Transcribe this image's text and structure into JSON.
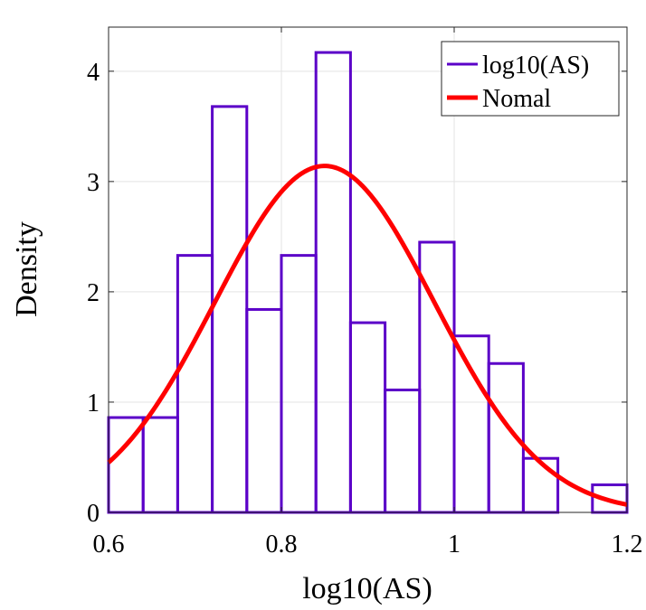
{
  "chart_data": {
    "type": "bar",
    "xlabel": "log10(AS)",
    "ylabel": "Density",
    "xlim": [
      0.6,
      1.2
    ],
    "ylim": [
      0,
      4.4
    ],
    "xticks": [
      "0.6",
      "0.8",
      "1",
      "1.2"
    ],
    "xtick_values": [
      0.6,
      0.8,
      1.0,
      1.2
    ],
    "yticks": [
      "0",
      "1",
      "2",
      "3",
      "4"
    ],
    "ytick_values": [
      0,
      1,
      2,
      3,
      4
    ],
    "grid": true,
    "legend_position": "top-right",
    "series": [
      {
        "name": "log10(AS)",
        "kind": "histogram",
        "color": "#5b00c8",
        "bin_edges": [
          0.6,
          0.64,
          0.68,
          0.72,
          0.76,
          0.8,
          0.84,
          0.88,
          0.92,
          0.96,
          1.0,
          1.04,
          1.08,
          1.12,
          1.16,
          1.2
        ],
        "values": [
          0.86,
          0.86,
          2.33,
          3.68,
          1.84,
          2.33,
          4.17,
          1.72,
          1.11,
          2.45,
          1.6,
          1.35,
          0.49,
          0.0,
          0.25
        ]
      },
      {
        "name": "Nomal",
        "kind": "line",
        "color": "#ff0000",
        "mean": 0.85,
        "std": 0.127
      }
    ]
  }
}
